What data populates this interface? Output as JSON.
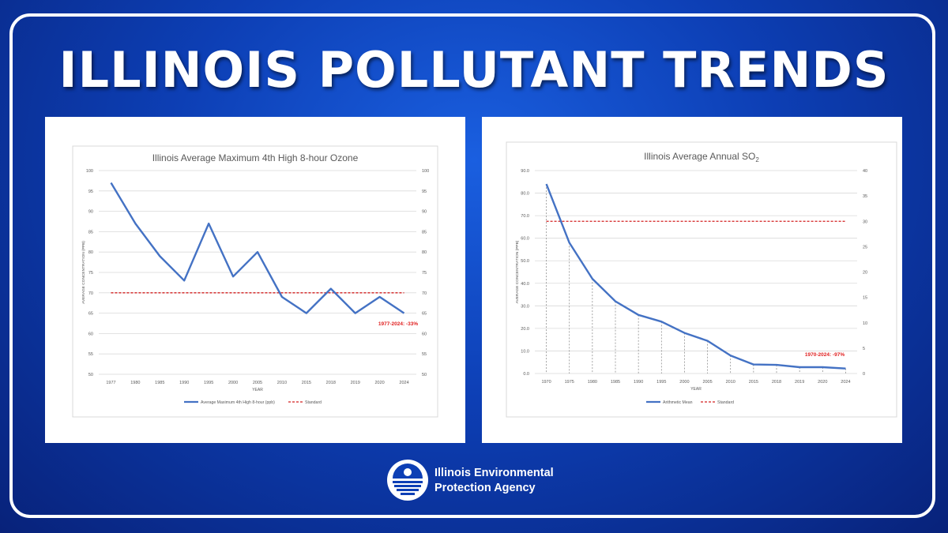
{
  "banner": {
    "title": "ILLINOIS POLLUTANT TRENDS"
  },
  "footer": {
    "agency_line1": "Illinois Environmental",
    "agency_line2": "Protection Agency"
  },
  "colors": {
    "series": "#4472c4",
    "standard": "#d42020",
    "annotation": "#e02020"
  },
  "chart_data": [
    {
      "type": "line",
      "title": "Illinois Average Maximum 4th High 8-hour Ozone",
      "xlabel": "YEAR",
      "ylabel": "AVERAGE CONCENTRATION (PPB)",
      "categories": [
        "1977",
        "1980",
        "1985",
        "1990",
        "1995",
        "2000",
        "2005",
        "2010",
        "2015",
        "2018",
        "2019",
        "2020",
        "2024"
      ],
      "series": [
        {
          "name": "Average Maximum 4th High 8-hour (ppb)",
          "values": [
            97,
            87,
            79,
            73,
            87,
            74,
            80,
            69,
            65,
            71,
            65,
            69,
            65
          ]
        },
        {
          "name": "Standard",
          "values": [
            70,
            70,
            70,
            70,
            70,
            70,
            70,
            70,
            70,
            70,
            70,
            70,
            70
          ]
        }
      ],
      "ylim": [
        50,
        100
      ],
      "yticks": [
        "50",
        "55",
        "60",
        "65",
        "70",
        "75",
        "80",
        "85",
        "90",
        "95",
        "100"
      ],
      "y2lim": [
        50,
        100
      ],
      "y2ticks": [
        "50",
        "55",
        "60",
        "65",
        "70",
        "75",
        "80",
        "85",
        "90",
        "95",
        "100"
      ],
      "annotation": "1977-2024: -33%",
      "legend": "bottom",
      "grid": true
    },
    {
      "type": "line",
      "title": "Illinois Average Annual SO",
      "title_sub": "2",
      "xlabel": "YEAR",
      "ylabel": "AVERAGE CONCENTRATION (PPB)",
      "categories": [
        "1970",
        "1975",
        "1980",
        "1985",
        "1990",
        "1995",
        "2000",
        "2005",
        "2010",
        "2015",
        "2018",
        "2019",
        "2020",
        "2024"
      ],
      "series": [
        {
          "name": "Arithmetic Mean",
          "values": [
            84,
            58,
            42,
            32,
            26,
            23,
            18,
            14.5,
            8,
            4,
            3.8,
            2.8,
            2.8,
            2.2
          ]
        },
        {
          "name": "Standard",
          "values": [
            67.5,
            67.5,
            67.5,
            67.5,
            67.5,
            67.5,
            67.5,
            67.5,
            67.5,
            67.5,
            67.5,
            67.5,
            67.5,
            67.5
          ]
        }
      ],
      "ylim": [
        0,
        90
      ],
      "yticks": [
        "0.0",
        "10.0",
        "20.0",
        "30.0",
        "40.0",
        "50.0",
        "60.0",
        "70.0",
        "80.0",
        "90.0"
      ],
      "y2lim": [
        0,
        40
      ],
      "y2ticks": [
        "0",
        "5",
        "10",
        "15",
        "20",
        "25",
        "30",
        "35",
        "40"
      ],
      "annotation": "1970-2024: -97%",
      "legend": "bottom",
      "grid": true,
      "drop_lines": true
    }
  ]
}
